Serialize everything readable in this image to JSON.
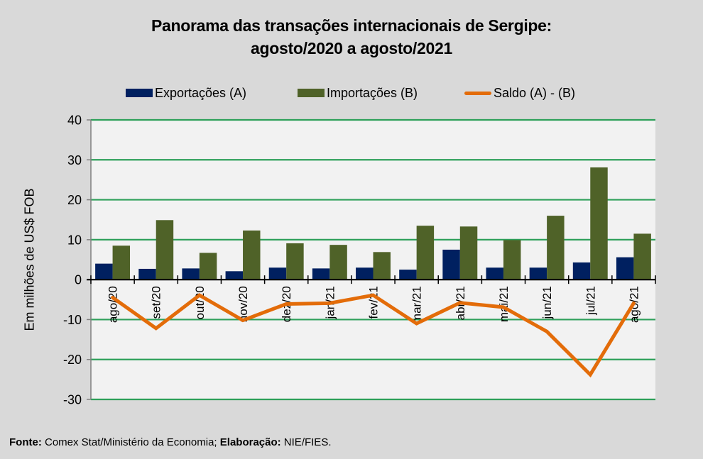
{
  "chart_data": {
    "type": "bar",
    "title_line1": "Panorama  das transações internacionais de Sergipe:",
    "title_line2": "agosto/2020 a agosto/2021",
    "xlabel": "",
    "ylabel": "Em milhões de US$ FOB",
    "ylim": [
      -30,
      40
    ],
    "yticks": [
      40,
      30,
      20,
      10,
      0,
      -10,
      -20,
      -30
    ],
    "grid": true,
    "legend_position": "top",
    "categories": [
      "ago/20",
      "set/20",
      "out/20",
      "nov/20",
      "dez/20",
      "jan/21",
      "fev/21",
      "mar/21",
      "abr/21",
      "mai/21",
      "jun/21",
      "jul/21",
      "ago/21"
    ],
    "series": [
      {
        "name": "Exportações (A)",
        "kind": "bar",
        "color": "#002060",
        "values": [
          4.0,
          2.7,
          2.8,
          2.1,
          3.0,
          2.8,
          3.0,
          2.5,
          7.5,
          3.0,
          3.0,
          4.3,
          5.6
        ]
      },
      {
        "name": "Importações (B)",
        "kind": "bar",
        "color": "#4F6228",
        "values": [
          8.5,
          14.9,
          6.7,
          12.3,
          9.1,
          8.7,
          6.9,
          13.5,
          13.3,
          9.9,
          16.0,
          28.1,
          11.5
        ]
      },
      {
        "name": "Saldo (A) - (B)",
        "kind": "line",
        "color": "#E36C09",
        "values": [
          -4.5,
          -12.2,
          -3.9,
          -10.2,
          -6.1,
          -5.9,
          -3.9,
          -11.0,
          -5.8,
          -6.9,
          -13.0,
          -23.8,
          -5.9
        ]
      }
    ],
    "colors": {
      "background": "#D9D9D9",
      "plot_background": "#F2F2F2",
      "gridline": "#2EA05A"
    }
  },
  "footer": {
    "fonte_label": "Fonte:",
    "fonte_text": " Comex Stat/Ministério da Economia; ",
    "elaboracao_label": "Elaboração:",
    "elaboracao_text": " NIE/FIES."
  }
}
